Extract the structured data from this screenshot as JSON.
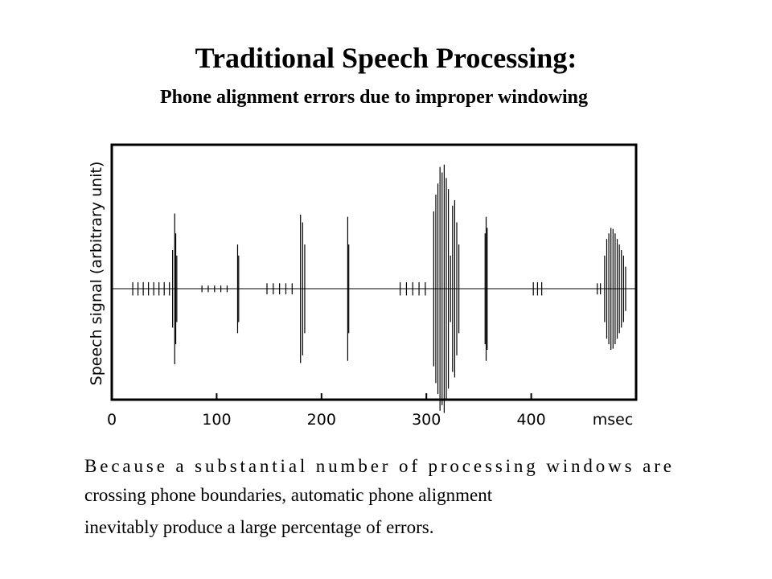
{
  "title": "Traditional Speech Processing:",
  "subtitle": "Phone alignment errors due to improper windowing",
  "chart_data": {
    "type": "waveform",
    "y_label": "Speech signal (arbitrary unit)",
    "x_label": "msec",
    "x": [
      20,
      25,
      30,
      35,
      40,
      45,
      50,
      55,
      58,
      60,
      61,
      62,
      86,
      92,
      98,
      104,
      110,
      120,
      121,
      148,
      154,
      160,
      166,
      172,
      180,
      182,
      184,
      225,
      226,
      275,
      281,
      287,
      293,
      299,
      307,
      309,
      311,
      313,
      315,
      317,
      319,
      321,
      323,
      325,
      327,
      329,
      331,
      356,
      357,
      358,
      402,
      406,
      410,
      463,
      466,
      470,
      472,
      474,
      476,
      478,
      480,
      482,
      484,
      486,
      488,
      490
    ],
    "values": [
      0.06,
      0.06,
      0.06,
      0.06,
      0.06,
      0.06,
      0.06,
      0.06,
      0.35,
      0.68,
      0.5,
      0.3,
      0.03,
      0.03,
      0.03,
      0.03,
      0.03,
      0.4,
      0.3,
      0.05,
      0.05,
      0.05,
      0.05,
      0.05,
      0.67,
      0.6,
      0.4,
      0.65,
      0.4,
      0.06,
      0.06,
      0.06,
      0.06,
      0.06,
      0.7,
      0.85,
      0.95,
      1.1,
      1.05,
      1.12,
      1.0,
      0.9,
      0.3,
      0.75,
      0.8,
      0.6,
      0.4,
      0.5,
      0.65,
      0.55,
      0.06,
      0.06,
      0.06,
      0.05,
      0.05,
      0.3,
      0.45,
      0.5,
      0.55,
      0.54,
      0.5,
      0.45,
      0.4,
      0.35,
      0.3,
      0.2
    ],
    "color": "#000000",
    "xlim": [
      0,
      500
    ],
    "ylim": [
      -1,
      1.3
    ],
    "xticks": [
      0,
      100,
      200,
      300,
      400
    ]
  },
  "body": {
    "lines": [
      "Because a substantial number of processing windows are",
      "crossing phone boundaries, automatic phone alignment",
      "inevitably produce a large percentage of errors."
    ]
  }
}
